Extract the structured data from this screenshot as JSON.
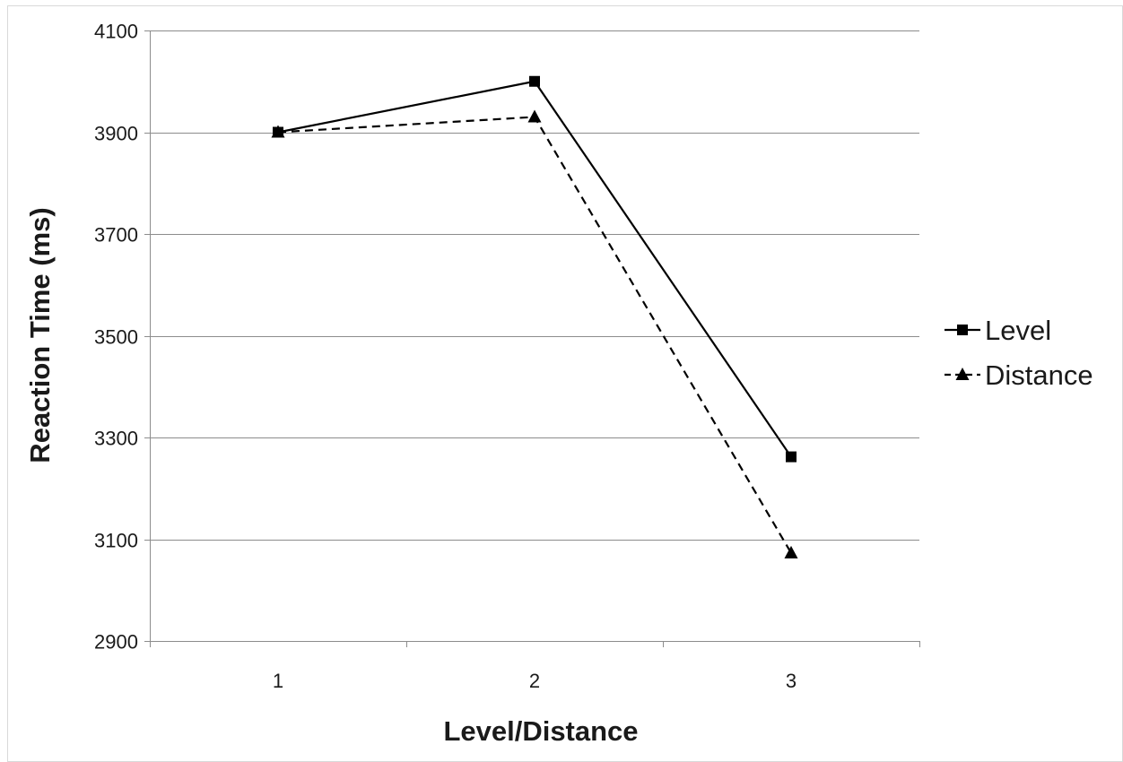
{
  "chart_data": {
    "type": "line",
    "x": [
      1,
      2,
      3
    ],
    "tick_labels_x": [
      "1",
      "2",
      "3"
    ],
    "xlabel": "Level/Distance",
    "ylabel": "Reaction Time (ms)",
    "ylim": [
      2900,
      4100
    ],
    "yticks": [
      2900,
      3100,
      3300,
      3500,
      3700,
      3900,
      4100
    ],
    "grid": "horizontal",
    "legend_position": "right",
    "series": [
      {
        "name": "Level",
        "values": [
          3900,
          4000,
          3262
        ],
        "marker": "square",
        "dash": "solid",
        "color": "#000000"
      },
      {
        "name": "Distance",
        "values": [
          3900,
          3930,
          3073
        ],
        "marker": "triangle",
        "dash": "dashed",
        "color": "#000000"
      }
    ]
  }
}
